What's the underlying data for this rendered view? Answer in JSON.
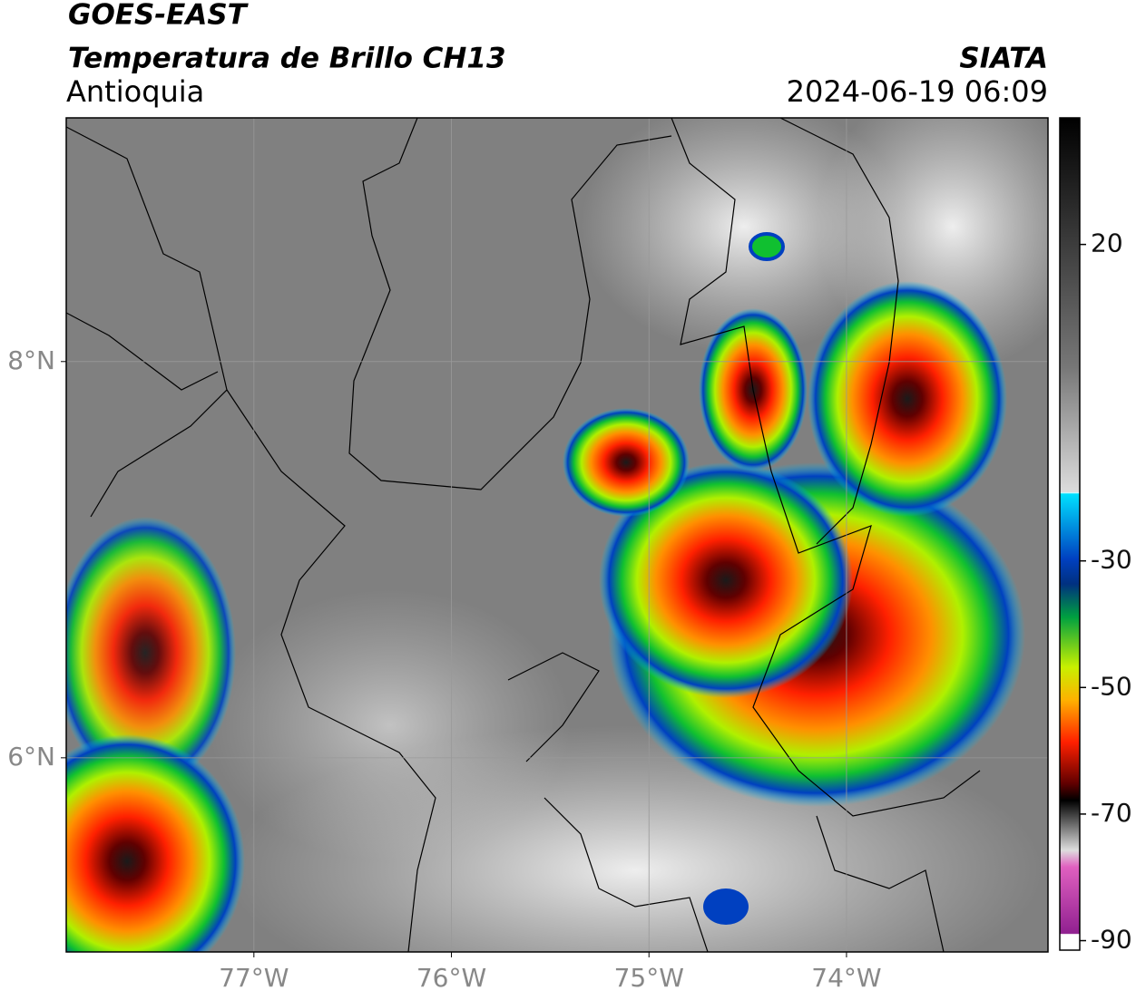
{
  "header": {
    "satellite": "GOES-EAST",
    "product": "Temperatura de Brillo CH13",
    "region": "Antioquia",
    "source": "SIATA",
    "datetime": "2024-06-19 06:09"
  },
  "map": {
    "xlim": [
      -77.95,
      -72.98
    ],
    "ylim": [
      5.02,
      9.23
    ],
    "xticks": [
      {
        "value": -77,
        "label": "77°W"
      },
      {
        "value": -76,
        "label": "76°W"
      },
      {
        "value": -75,
        "label": "75°W"
      },
      {
        "value": -74,
        "label": "74°W"
      }
    ],
    "yticks": [
      {
        "value": 8,
        "label": "8°N"
      },
      {
        "value": 6,
        "label": "6°N"
      }
    ],
    "grid": true
  },
  "colorbar": {
    "lim": [
      -91.5,
      40
    ],
    "ticks": [
      20,
      -30,
      -50,
      -70,
      -90
    ]
  }
}
